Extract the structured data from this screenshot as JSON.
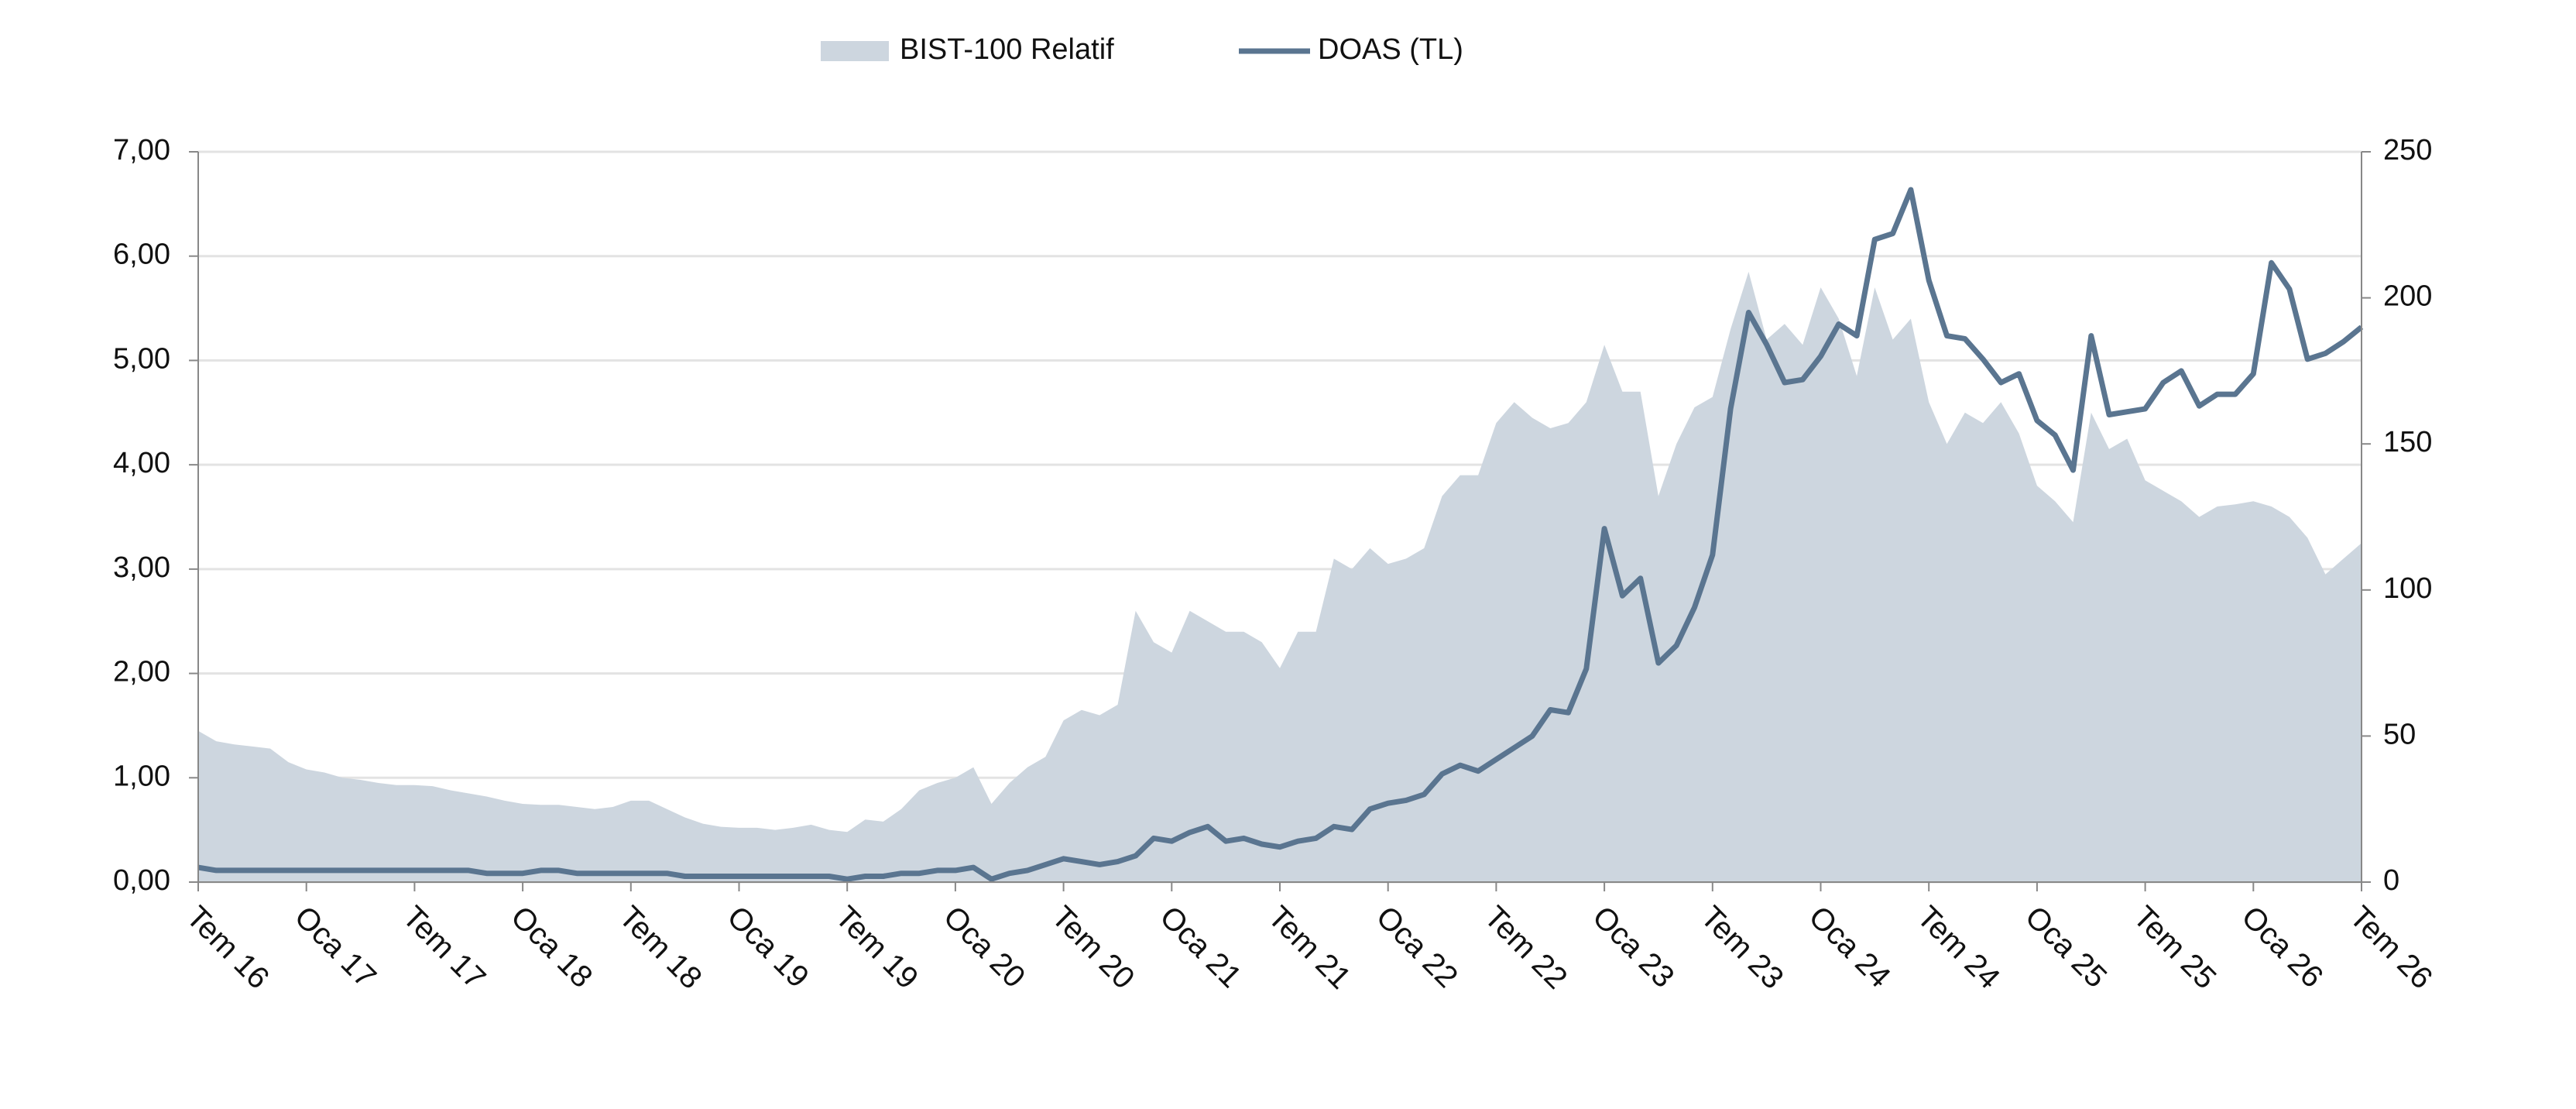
{
  "chart_data": {
    "type": "line",
    "categories": [
      "Tem 16",
      null,
      null,
      null,
      null,
      null,
      "Oca 17",
      null,
      null,
      null,
      null,
      null,
      "Tem 17",
      null,
      null,
      null,
      null,
      null,
      "Oca 18",
      null,
      null,
      null,
      null,
      null,
      "Tem 18",
      null,
      null,
      null,
      null,
      null,
      "Oca 19",
      null,
      null,
      null,
      null,
      null,
      "Tem 19",
      null,
      null,
      null,
      null,
      null,
      "Oca 20",
      null,
      null,
      null,
      null,
      null,
      "Tem 20",
      null,
      null,
      null,
      null,
      null,
      "Oca 21",
      null,
      null,
      null,
      null,
      null,
      "Tem 21",
      null,
      null,
      null,
      null,
      null,
      "Oca 22",
      null,
      null,
      null,
      null,
      null,
      "Tem 22",
      null,
      null,
      null,
      null,
      null,
      "Oca 23",
      null,
      null,
      null,
      null,
      null,
      "Tem 23",
      null,
      null,
      null,
      null,
      null,
      "Oca 24",
      null,
      null,
      null,
      null,
      null,
      "Tem 24",
      null,
      null,
      null,
      null,
      null,
      "Oca 25",
      null,
      null,
      null,
      null,
      null,
      "Tem 25",
      null,
      null,
      null,
      null,
      null,
      "Oca 26",
      null,
      null,
      null,
      null,
      null,
      "Tem 26"
    ],
    "series": [
      {
        "name": "BIST-100 Relatif",
        "type": "area",
        "color": "#cdd6df",
        "values": [
          1.45,
          1.35,
          1.32,
          1.3,
          1.28,
          1.15,
          1.08,
          1.05,
          1.0,
          0.98,
          0.95,
          0.93,
          0.93,
          0.92,
          0.88,
          0.85,
          0.82,
          0.78,
          0.75,
          0.74,
          0.74,
          0.72,
          0.7,
          0.72,
          0.78,
          0.78,
          0.7,
          0.62,
          0.56,
          0.53,
          0.52,
          0.52,
          0.5,
          0.52,
          0.55,
          0.5,
          0.48,
          0.6,
          0.58,
          0.7,
          0.88,
          0.95,
          1.0,
          1.1,
          0.75,
          0.95,
          1.1,
          1.2,
          1.55,
          1.65,
          1.6,
          1.7,
          2.6,
          2.3,
          2.2,
          2.6,
          2.5,
          2.4,
          2.4,
          2.3,
          2.05,
          2.4,
          2.4,
          3.1,
          3.0,
          3.2,
          3.05,
          3.1,
          3.2,
          3.7,
          3.9,
          3.9,
          4.4,
          4.6,
          4.45,
          4.35,
          4.4,
          4.6,
          5.15,
          4.7,
          4.7,
          3.7,
          4.2,
          4.55,
          4.65,
          5.3,
          5.85,
          5.2,
          5.35,
          5.15,
          5.7,
          5.4,
          4.85,
          5.7,
          5.2,
          5.4,
          4.6,
          4.2,
          4.5,
          4.4,
          4.6,
          4.3,
          3.8,
          3.65,
          3.45,
          4.5,
          4.15,
          4.25,
          3.85,
          3.75,
          3.65,
          3.5,
          3.6,
          3.62,
          3.65,
          3.6,
          3.5,
          3.3,
          2.95,
          3.1,
          3.25
        ]
      },
      {
        "name": "DOAS (TL)",
        "type": "line",
        "axis": "y2",
        "color": "#5a7590",
        "values": [
          5,
          4,
          4,
          4,
          4,
          4,
          4,
          4,
          4,
          4,
          4,
          4,
          4,
          4,
          4,
          4,
          3,
          3,
          3,
          4,
          4,
          3,
          3,
          3,
          3,
          3,
          3,
          2,
          2,
          2,
          2,
          2,
          2,
          2,
          2,
          2,
          1,
          2,
          2,
          3,
          3,
          4,
          4,
          5,
          1,
          3,
          4,
          6,
          8,
          7,
          6,
          7,
          9,
          15,
          14,
          17,
          19,
          14,
          15,
          13,
          12,
          14,
          15,
          19,
          18,
          25,
          27,
          28,
          30,
          37,
          40,
          38,
          42,
          46,
          50,
          59,
          58,
          73,
          121,
          98,
          104,
          75,
          81,
          94,
          112,
          162,
          195,
          184,
          171,
          172,
          180,
          191,
          187,
          220,
          222,
          237,
          206,
          187,
          186,
          179,
          171,
          174,
          158,
          153,
          141,
          187,
          160,
          161,
          162,
          171,
          175,
          163,
          167,
          167,
          174,
          212,
          203,
          179,
          181,
          185,
          190
        ]
      }
    ],
    "ylim": [
      0,
      7
    ],
    "yticks": [
      {
        "value": 0,
        "label": "0,00"
      },
      {
        "value": 1,
        "label": "1,00"
      },
      {
        "value": 2,
        "label": "2,00"
      },
      {
        "value": 3,
        "label": "3,00"
      },
      {
        "value": 4,
        "label": "4,00"
      },
      {
        "value": 5,
        "label": "5,00"
      },
      {
        "value": 6,
        "label": "6,00"
      },
      {
        "value": 7,
        "label": "7,00"
      }
    ],
    "y2lim": [
      0,
      250
    ],
    "y2ticks": [
      0,
      50,
      100,
      150,
      200,
      250
    ],
    "grid": true
  }
}
